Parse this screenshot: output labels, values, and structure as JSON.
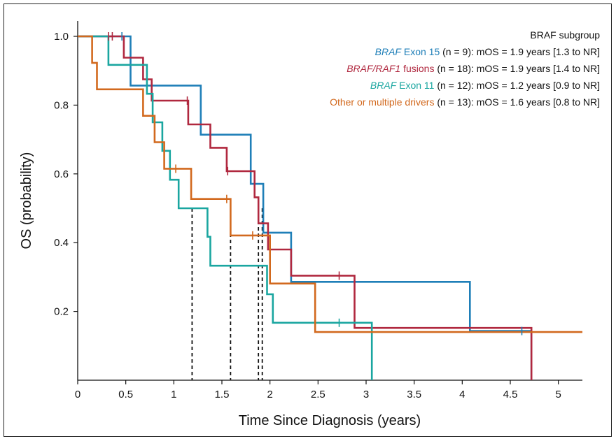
{
  "chart_data": {
    "type": "line",
    "title": "",
    "xlabel": "Time Since Diagnosis (years)",
    "ylabel": "OS (probability)",
    "xlim": [
      0,
      5.25
    ],
    "ylim": [
      0,
      1.05
    ],
    "xticks": [
      0,
      0.5,
      1,
      1.5,
      2,
      2.5,
      3,
      3.5,
      4,
      4.5,
      5
    ],
    "xtick_labels": [
      "0",
      "0.5",
      "1",
      "1.5",
      "2",
      "2.5",
      "3",
      "3.5",
      "4",
      "4.5",
      "5"
    ],
    "yticks": [
      0.2,
      0.4,
      0.6,
      0.8,
      1.0
    ],
    "ytick_labels": [
      "0.2",
      "0.4",
      "0.6",
      "0.8",
      "1.0"
    ],
    "grid": false,
    "legend_title": "BRAF subgroup",
    "legend_position": "top-right",
    "series": [
      {
        "name": "BRAF Exon 15",
        "legend_italic": "BRAF",
        "legend_plain": " Exon 15",
        "legend_suffix": " (n = 9): mOS = 1.9 years [1.3 to NR]",
        "color": "#1f7fb8",
        "x": [
          0,
          0.55,
          0.55,
          1.28,
          1.28,
          1.8,
          1.8,
          1.93,
          1.93,
          2.22,
          2.22,
          4.08,
          4.08,
          4.72,
          4.72
        ],
        "y": [
          1.0,
          1.0,
          0.857,
          0.857,
          0.714,
          0.714,
          0.571,
          0.571,
          0.429,
          0.429,
          0.286,
          0.286,
          0.143,
          0.143,
          0.0
        ],
        "censor_x": [
          0.46,
          4.62
        ],
        "censor_y": [
          1.0,
          0.143
        ]
      },
      {
        "name": "BRAF/RAF1 fusions",
        "legend_italic": "BRAF/RAF1",
        "legend_plain": " fusions",
        "legend_suffix": " (n = 18): mOS = 1.9 years [1.4 to NR]",
        "color": "#b0283f",
        "x": [
          0,
          0.48,
          0.48,
          0.68,
          0.68,
          0.77,
          0.77,
          1.15,
          1.15,
          1.38,
          1.38,
          1.55,
          1.55,
          1.84,
          1.84,
          1.88,
          1.88,
          1.92,
          1.92,
          1.98,
          1.98,
          2.22,
          2.22,
          2.48,
          2.48,
          2.88,
          2.88,
          4.72,
          4.72
        ],
        "y": [
          1.0,
          1.0,
          0.938,
          0.938,
          0.875,
          0.875,
          0.813,
          0.813,
          0.744,
          0.744,
          0.676,
          0.676,
          0.608,
          0.608,
          0.532,
          0.532,
          0.456,
          0.456,
          0.456,
          0.456,
          0.38,
          0.38,
          0.304,
          0.304,
          0.304,
          0.304,
          0.152,
          0.152,
          0.0
        ],
        "censor_x": [
          0.32,
          0.36,
          1.14,
          1.56,
          2.72
        ],
        "censor_y": [
          1.0,
          1.0,
          0.813,
          0.608,
          0.304
        ]
      },
      {
        "name": "BRAF Exon 11",
        "legend_italic": "BRAF",
        "legend_plain": " Exon 11",
        "legend_suffix": " (n = 12): mOS = 1.2 years [0.9 to NR]",
        "color": "#1aa6a0",
        "x": [
          0,
          0.32,
          0.32,
          0.72,
          0.72,
          0.78,
          0.78,
          0.88,
          0.88,
          0.96,
          0.96,
          1.05,
          1.05,
          1.35,
          1.35,
          1.38,
          1.38,
          1.97,
          1.97,
          2.03,
          2.03,
          3.06,
          3.06
        ],
        "y": [
          1.0,
          1.0,
          0.917,
          0.917,
          0.833,
          0.833,
          0.75,
          0.75,
          0.667,
          0.667,
          0.583,
          0.583,
          0.5,
          0.5,
          0.417,
          0.417,
          0.333,
          0.333,
          0.25,
          0.25,
          0.167,
          0.167,
          0.0
        ],
        "censor_x": [
          2.72
        ],
        "censor_y": [
          0.167
        ]
      },
      {
        "name": "Other or multiple drivers",
        "legend_italic": "",
        "legend_plain": "Other or multiple drivers",
        "legend_suffix": " (n = 13): mOS = 1.6 years [0.8 to NR]",
        "color": "#d2691e",
        "x": [
          0,
          0.15,
          0.15,
          0.2,
          0.2,
          0.68,
          0.68,
          0.8,
          0.8,
          0.9,
          0.9,
          1.18,
          1.18,
          1.59,
          1.59,
          2.0,
          2.0,
          2.47,
          2.47,
          5.25
        ],
        "y": [
          1.0,
          1.0,
          0.923,
          0.923,
          0.846,
          0.846,
          0.769,
          0.769,
          0.692,
          0.692,
          0.615,
          0.615,
          0.527,
          0.527,
          0.421,
          0.421,
          0.281,
          0.281,
          0.14,
          0.14
        ],
        "censor_x": [
          1.02,
          1.55,
          1.82
        ],
        "censor_y": [
          0.615,
          0.527,
          0.421
        ]
      }
    ],
    "median_lines": [
      {
        "x": 1.19,
        "y": 0.5
      },
      {
        "x": 1.59,
        "y": 0.5
      },
      {
        "x": 1.88,
        "y": 0.5
      },
      {
        "x": 1.92,
        "y": 0.5
      }
    ]
  }
}
